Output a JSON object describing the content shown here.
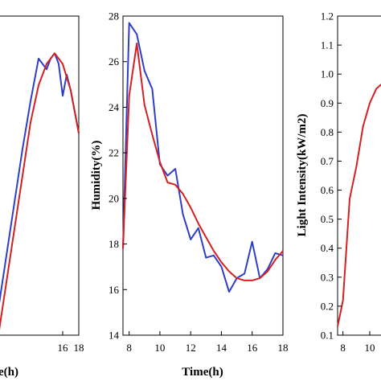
{
  "chart_data": [
    {
      "type": "line",
      "xlabel": "Time(h)",
      "ylabel": "",
      "xlim": [
        8,
        18
      ],
      "ylim": [
        22,
        28
      ],
      "x_ticks": [
        "16",
        "18"
      ],
      "y_ticks": [],
      "series": [
        {
          "name": "",
          "color": "#2f3ec8",
          "x": [
            8,
            9,
            10,
            11,
            12,
            13,
            14,
            14.5,
            15,
            15.5,
            16,
            16.5,
            17,
            17.5,
            18
          ],
          "y": [
            22.5,
            23.5,
            24.5,
            25.5,
            26.4,
            27.2,
            27.0,
            27.2,
            27.3,
            27.1,
            26.5,
            26.9,
            26.6,
            26.2,
            25.8
          ]
        },
        {
          "name": "",
          "color": "#d42020",
          "x": [
            8,
            9,
            10,
            11,
            12,
            13,
            14,
            15,
            16,
            17,
            18
          ],
          "y": [
            22.0,
            23.0,
            24.0,
            25.0,
            26.0,
            26.7,
            27.1,
            27.3,
            27.1,
            26.6,
            25.8
          ]
        }
      ]
    },
    {
      "type": "line",
      "xlabel": "Time(h)",
      "ylabel": "Humidity(%)",
      "xlim": [
        7.6,
        18
      ],
      "ylim": [
        14,
        28
      ],
      "x_ticks": [
        "8",
        "10",
        "12",
        "14",
        "16",
        "18"
      ],
      "y_ticks": [
        "14",
        "16",
        "18",
        "20",
        "22",
        "24",
        "26",
        "28"
      ],
      "series": [
        {
          "name": "",
          "color": "#2f3ec8",
          "x": [
            7.6,
            8,
            8.5,
            9,
            9.5,
            10,
            10.5,
            11,
            11.5,
            12,
            12.5,
            13,
            13.5,
            14,
            14.5,
            15,
            15.5,
            16,
            16.5,
            17,
            17.5,
            18
          ],
          "y": [
            17.8,
            27.7,
            27.2,
            25.6,
            24.8,
            21.5,
            21.0,
            21.3,
            19.3,
            18.2,
            18.7,
            17.4,
            17.5,
            17.0,
            15.9,
            16.5,
            16.7,
            18.1,
            16.5,
            16.9,
            17.6,
            17.5
          ]
        },
        {
          "name": "",
          "color": "#d42020",
          "x": [
            7.6,
            8,
            8.5,
            9,
            9.5,
            10,
            10.5,
            11,
            11.5,
            12,
            12.5,
            13,
            13.5,
            14,
            14.5,
            15,
            15.5,
            16,
            16.5,
            17,
            17.5,
            18
          ],
          "y": [
            17.8,
            24.5,
            26.8,
            24.1,
            22.8,
            21.6,
            20.7,
            20.6,
            20.2,
            19.6,
            18.9,
            18.3,
            17.7,
            17.2,
            16.8,
            16.5,
            16.4,
            16.4,
            16.5,
            16.8,
            17.3,
            17.7
          ]
        }
      ]
    },
    {
      "type": "line",
      "xlabel": "",
      "ylabel": "Light Intensity(kW/m2)",
      "xlim": [
        7.6,
        11.8
      ],
      "ylim": [
        0.1,
        1.2
      ],
      "x_ticks": [
        "8",
        "10"
      ],
      "y_ticks": [
        "0.1",
        "0.2",
        "0.3",
        "0.4",
        "0.5",
        "0.6",
        "0.7",
        "0.8",
        "0.9",
        "1.0",
        "1.1",
        "1.2"
      ],
      "series": [
        {
          "name": "",
          "color": "#d42020",
          "x": [
            7.6,
            8,
            8.5,
            9,
            9.5,
            10,
            10.5,
            11
          ],
          "y": [
            0.13,
            0.22,
            0.57,
            0.68,
            0.82,
            0.9,
            0.95,
            0.97
          ]
        }
      ]
    }
  ],
  "labels": {
    "left_x_axis": "e(h)",
    "middle_x_axis": "Time(h)",
    "middle_y_axis": "Humidity(%)",
    "right_y_axis": "Light Intensity(kW/m2)"
  }
}
